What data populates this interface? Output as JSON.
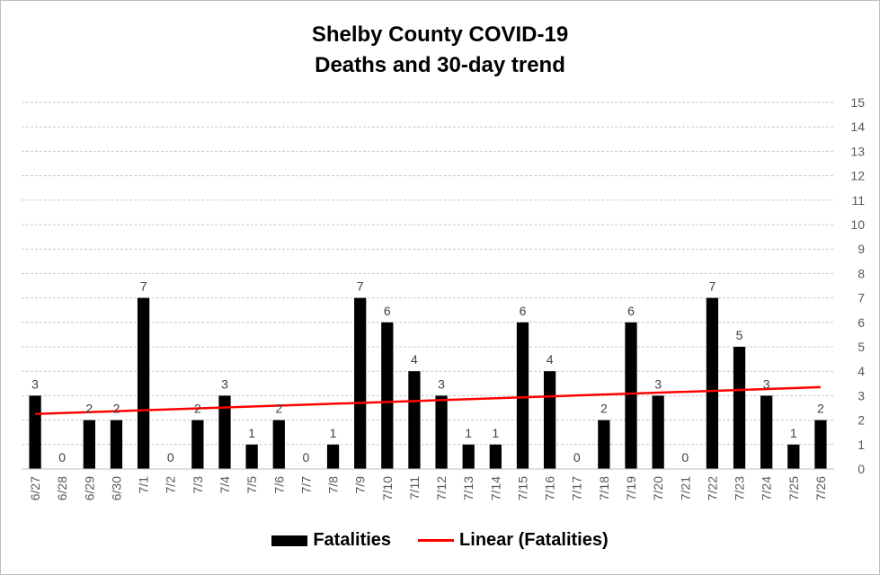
{
  "chart_data": {
    "type": "bar",
    "title_lines": [
      "Shelby County COVID-19",
      "Deaths and 30-day trend"
    ],
    "categories": [
      "6/27",
      "6/28",
      "6/29",
      "6/30",
      "7/1",
      "7/2",
      "7/3",
      "7/4",
      "7/5",
      "7/6",
      "7/7",
      "7/8",
      "7/9",
      "7/10",
      "7/11",
      "7/12",
      "7/13",
      "7/14",
      "7/15",
      "7/16",
      "7/17",
      "7/18",
      "7/19",
      "7/20",
      "7/21",
      "7/22",
      "7/23",
      "7/24",
      "7/25",
      "7/26"
    ],
    "series": [
      {
        "name": "Fatalities",
        "color": "#000000",
        "values": [
          3,
          0,
          2,
          2,
          7,
          0,
          2,
          3,
          1,
          2,
          0,
          1,
          7,
          6,
          4,
          3,
          1,
          1,
          6,
          4,
          0,
          2,
          6,
          3,
          0,
          7,
          5,
          3,
          1,
          2
        ]
      }
    ],
    "trendline": {
      "name": "Linear (Fatalities)",
      "color": "#ff0000",
      "type": "linear"
    },
    "ylim": [
      0,
      15
    ],
    "y_axis_position": "right",
    "yticks": [
      0,
      1,
      2,
      3,
      4,
      5,
      6,
      7,
      8,
      9,
      10,
      11,
      12,
      13,
      14,
      15
    ],
    "grid": true,
    "legend_placement": "bottom"
  }
}
